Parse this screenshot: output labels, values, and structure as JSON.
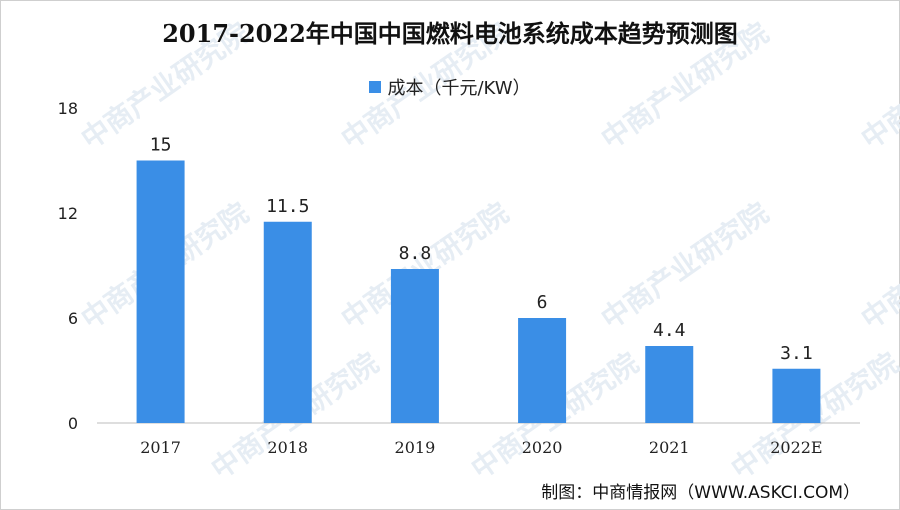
{
  "chart_data": {
    "type": "bar",
    "title": "2017-2022年中国中国燃料电池系统成本趋势预测图",
    "categories": [
      "2017",
      "2018",
      "2019",
      "2020",
      "2021",
      "2022E"
    ],
    "series": [
      {
        "name": "成本（千元/KW）",
        "values": [
          15,
          11.5,
          8.8,
          6,
          4.4,
          3.1
        ],
        "color": "#3a8ee6"
      }
    ],
    "data_labels": [
      "15",
      "11.5",
      "8.8",
      "6",
      "4.4",
      "3.1"
    ],
    "ylim": [
      0,
      18
    ],
    "yticks": [
      0,
      6,
      12,
      18
    ],
    "grid": false,
    "legend_position": "top-center"
  },
  "source_text": "制图：中商情报网（WWW.ASKCI.COM）",
  "watermark_text": "中商产业研究院"
}
